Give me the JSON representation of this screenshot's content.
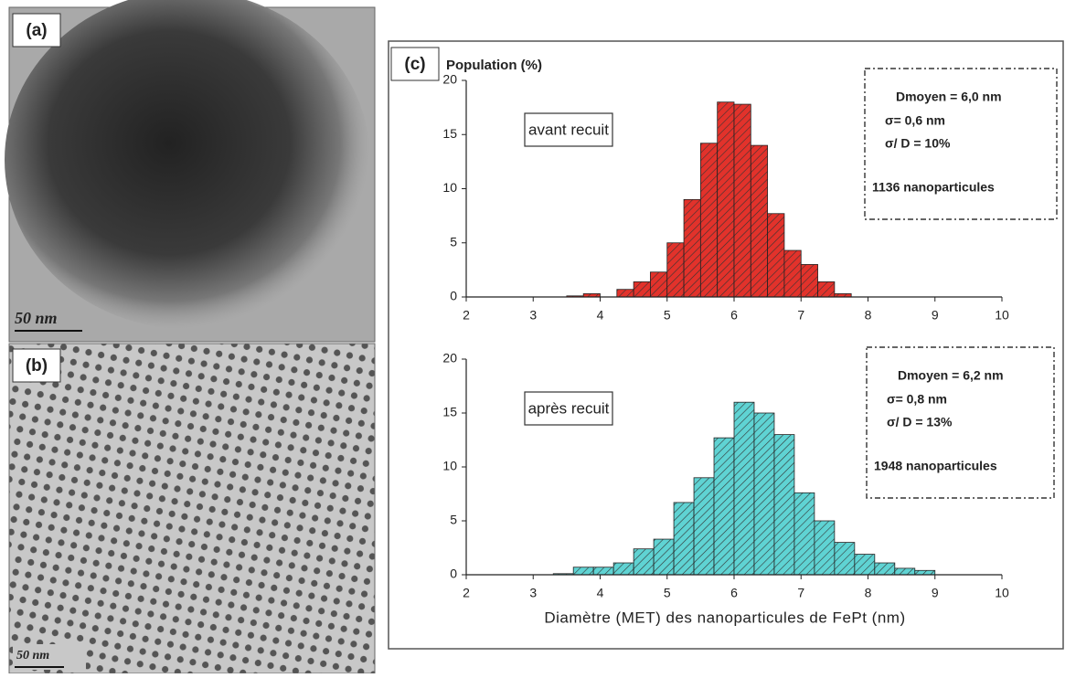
{
  "panels": [
    {
      "label": "(a)",
      "scale_bar": "50 nm"
    },
    {
      "label": "(b)",
      "scale_bar": "50 nm"
    }
  ],
  "panel_c_label": "(c)",
  "chart_data": [
    {
      "type": "histogram",
      "ylabel": "Population (%)",
      "label_box": "avant recuit",
      "stats": [
        "Dmoyen = 6,0 nm",
        "σ= 0,6 nm",
        "σ/ D = 10%",
        "1136 nanoparticules"
      ],
      "color": "#e2322b",
      "bins": [
        3.5,
        3.75,
        4.0,
        4.25,
        4.5,
        4.75,
        5.0,
        5.25,
        5.5,
        5.75,
        6.0,
        6.25,
        6.5,
        6.75,
        7.0,
        7.25,
        7.5,
        7.75
      ],
      "values": [
        0.1,
        0.3,
        0,
        0.7,
        1.4,
        2.3,
        5,
        9,
        14.2,
        18,
        17.8,
        14,
        7.7,
        4.3,
        3,
        1.4,
        0.3
      ],
      "xlim": [
        2,
        10
      ],
      "xticks": [
        2,
        3,
        4,
        5,
        6,
        7,
        8,
        9,
        10
      ],
      "ylim": [
        0,
        20
      ],
      "yticks": [
        0,
        5,
        10,
        15,
        20
      ]
    },
    {
      "type": "histogram",
      "xlabel": "Diamètre (MET) des nanoparticules de FePt (nm)",
      "label_box": "après recuit",
      "stats": [
        "Dmoyen = 6,2 nm",
        "σ= 0,8 nm",
        "σ/ D = 13%",
        "1948 nanoparticules"
      ],
      "color": "#5fd3d3",
      "bins": [
        3.3,
        3.6,
        3.9,
        4.2,
        4.5,
        4.8,
        5.1,
        5.4,
        5.7,
        6.0,
        6.3,
        6.6,
        6.9,
        7.2,
        7.5,
        7.8,
        8.1,
        8.4,
        8.7,
        9.0
      ],
      "values": [
        0.1,
        0.7,
        0.7,
        1.1,
        2.4,
        3.3,
        6.7,
        9,
        12.7,
        16,
        15,
        13,
        7.6,
        5,
        3,
        1.9,
        1.1,
        0.6,
        0.4
      ],
      "xlim": [
        2,
        10
      ],
      "xticks": [
        2,
        3,
        4,
        5,
        6,
        7,
        8,
        9,
        10
      ],
      "ylim": [
        0,
        20
      ],
      "yticks": [
        0,
        5,
        10,
        15,
        20
      ]
    }
  ]
}
